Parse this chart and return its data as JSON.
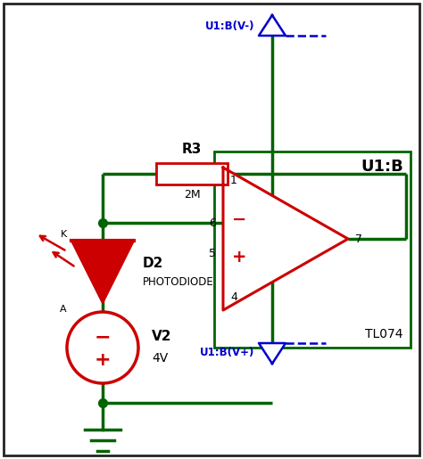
{
  "bg_color": "#ffffff",
  "wire_color": "#006400",
  "component_color": "#cc0000",
  "label_color_blue": "#0000cc",
  "label_color_dark": "#000000",
  "border_color": "#222222",
  "resistor_label": "R3",
  "resistor_value": "2M",
  "diode_label": "D2",
  "diode_sublabel": "PHOTODIODE",
  "voltage_label": "V2",
  "voltage_value": "4V",
  "opamp_label": "U1:B",
  "opamp_sublabel": "TL074",
  "pin_neg": "U1:B(V-)",
  "pin_pos": "U1:B(V+)",
  "pin6": "6",
  "pin5": "5",
  "pin7": "7",
  "pin_top": "1",
  "pin_bot": "4",
  "figsize": [
    4.74,
    5.15
  ],
  "dpi": 100
}
